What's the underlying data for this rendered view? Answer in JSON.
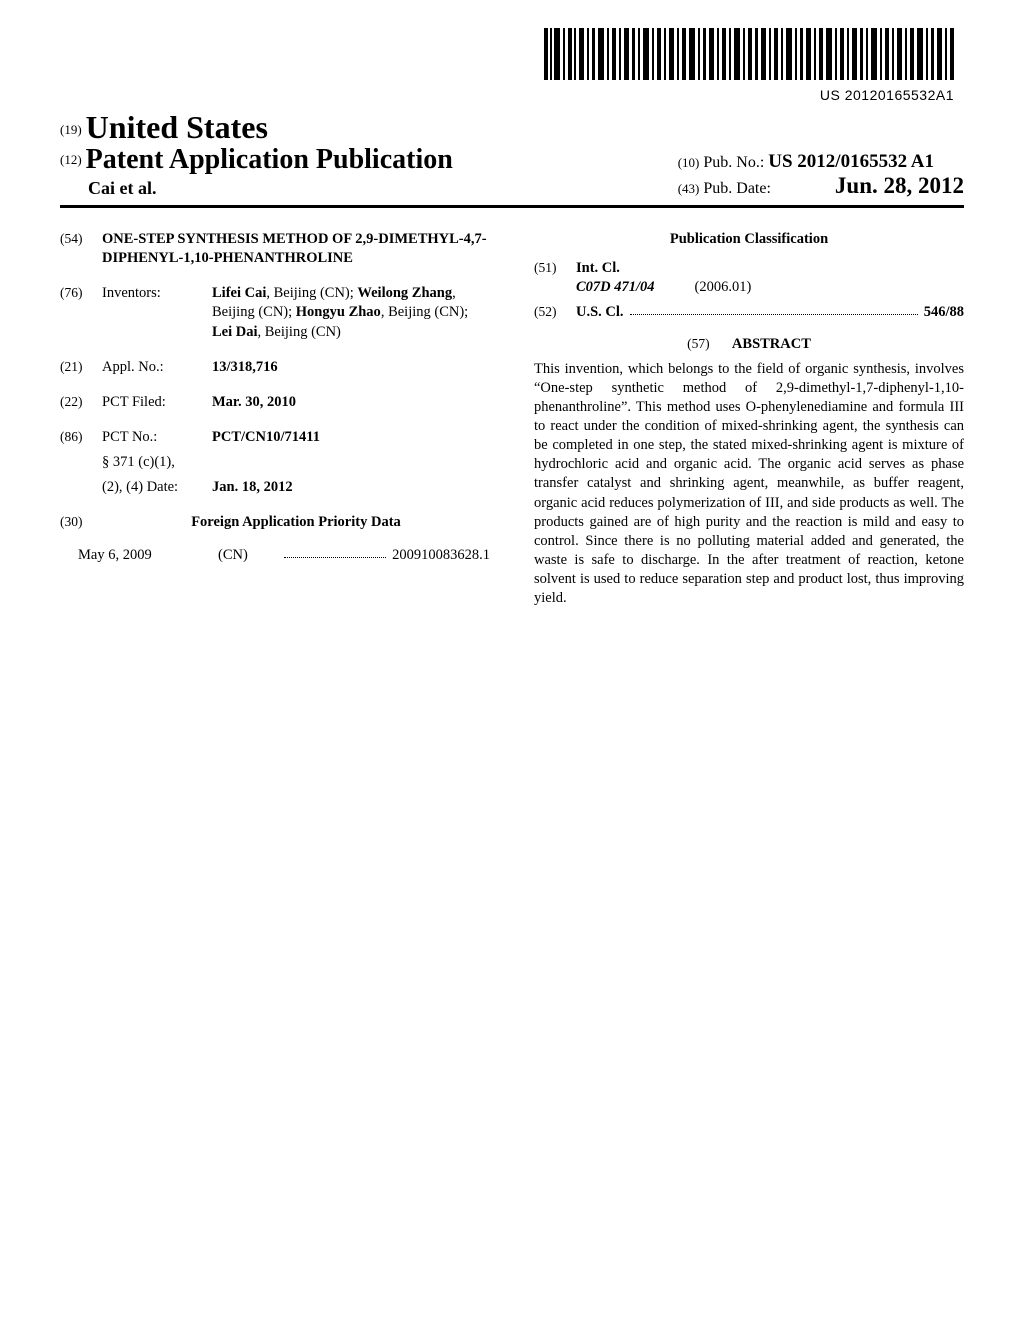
{
  "barcode_text": "US 20120165532A1",
  "header": {
    "num19": "(19)",
    "country": "United States",
    "num12": "(12)",
    "pub_type": "Patent Application Publication",
    "authors": "Cai et al.",
    "num10": "(10)",
    "pubno_label": "Pub. No.:",
    "pubno": "US 2012/0165532 A1",
    "num43": "(43)",
    "pubdate_label": "Pub. Date:",
    "pubdate": "Jun. 28, 2012"
  },
  "left": {
    "f54_num": "(54)",
    "f54_title": "ONE-STEP SYNTHESIS METHOD OF 2,9-DIMETHYL-4,7-DIPHENYL-1,10-PHENANTHROLINE",
    "f76_num": "(76)",
    "f76_label": "Inventors:",
    "inventors": [
      {
        "name": "Lifei Cai",
        "loc": ", Beijing (CN); "
      },
      {
        "name": "Weilong Zhang",
        "loc": ", Beijing (CN); "
      },
      {
        "name": "Hongyu Zhao",
        "loc": ", Beijing (CN); "
      },
      {
        "name": "Lei Dai",
        "loc": ", Beijing (CN)"
      }
    ],
    "f21_num": "(21)",
    "f21_label": "Appl. No.:",
    "f21_val": "13/318,716",
    "f22_num": "(22)",
    "f22_label": "PCT Filed:",
    "f22_val": "Mar. 30, 2010",
    "f86_num": "(86)",
    "f86_label": "PCT No.:",
    "f86_val": "PCT/CN10/71411",
    "f86_sub1_label": "§ 371 (c)(1),",
    "f86_sub2_label": "(2), (4) Date:",
    "f86_sub2_val": "Jan. 18, 2012",
    "f30_num": "(30)",
    "f30_head": "Foreign Application Priority Data",
    "priority_date": "May 6, 2009",
    "priority_country": "(CN)",
    "priority_number": "200910083628.1"
  },
  "right": {
    "pubclass_head": "Publication Classification",
    "f51_num": "(51)",
    "f51_label": "Int. Cl.",
    "intcl_code": "C07D 471/04",
    "intcl_date": "(2006.01)",
    "f52_num": "(52)",
    "f52_label": "U.S. Cl.",
    "uscl_val": "546/88",
    "f57_num": "(57)",
    "abstract_head": "ABSTRACT",
    "abstract": "This invention, which belongs to the field of organic synthesis, involves “One-step synthetic method of 2,9-dimethyl-1,7-diphenyl-1,10-phenanthroline”. This method uses O-phenylenediamine and formula III to react under the condition of mixed-shrinking agent, the synthesis can be completed in one step, the stated mixed-shrinking agent is mixture of hydrochloric acid and organic acid. The organic acid serves as phase transfer catalyst and shrinking agent, meanwhile, as buffer reagent, organic acid reduces polymerization of III, and side products as well. The products gained are of high purity and the reaction is mild and easy to control. Since there is no polluting material added and generated, the waste is safe to discharge. In the after treatment of reaction, ketone solvent is used to reduce separation step and product lost, thus improving yield."
  }
}
